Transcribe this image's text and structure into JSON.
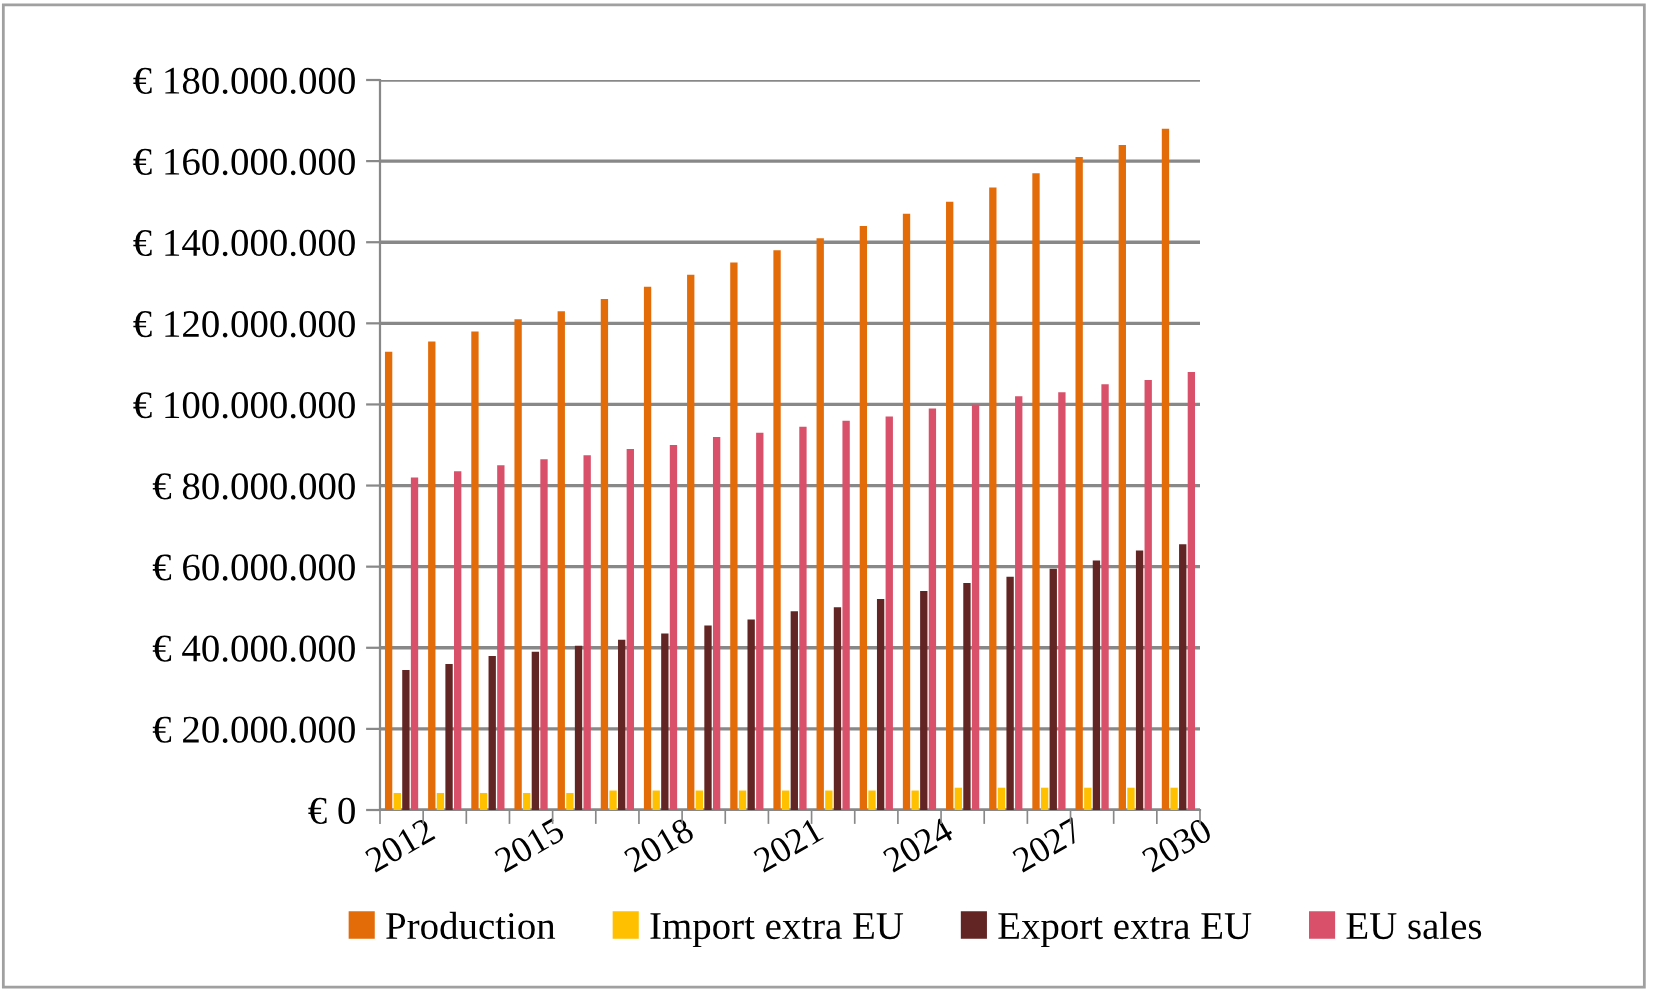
{
  "chart_data": {
    "type": "bar",
    "categories": [
      "2012",
      null,
      null,
      "2015",
      null,
      null,
      "2018",
      null,
      null,
      "2021",
      null,
      null,
      "2024",
      null,
      null,
      "2027",
      null,
      null,
      "2030"
    ],
    "series": [
      {
        "name": "Production",
        "color": "#e36c09",
        "values": [
          113000000,
          115500000,
          118000000,
          121000000,
          123000000,
          126000000,
          129000000,
          132000000,
          135000000,
          138000000,
          141000000,
          144000000,
          147000000,
          150000000,
          153500000,
          157000000,
          161000000,
          164000000,
          168000000
        ]
      },
      {
        "name": "Import extra EU",
        "color": "#ffc000",
        "values": [
          4200000,
          4200000,
          4200000,
          4200000,
          4200000,
          4800000,
          4800000,
          4800000,
          4800000,
          4800000,
          4800000,
          4800000,
          4800000,
          5500000,
          5500000,
          5500000,
          5500000,
          5500000,
          5500000
        ]
      },
      {
        "name": "Export extra EU",
        "color": "#632523",
        "values": [
          34500000,
          36000000,
          38000000,
          39000000,
          40500000,
          42000000,
          43500000,
          45500000,
          47000000,
          49000000,
          50000000,
          52000000,
          54000000,
          56000000,
          57500000,
          59500000,
          61500000,
          64000000,
          65500000
        ]
      },
      {
        "name": "EU sales",
        "color": "#d9506a",
        "values": [
          82000000,
          83500000,
          85000000,
          86500000,
          87500000,
          89000000,
          90000000,
          92000000,
          93000000,
          94500000,
          96000000,
          97000000,
          99000000,
          100000000,
          102000000,
          103000000,
          105000000,
          106000000,
          108000000
        ]
      }
    ],
    "ylim": [
      0,
      180000000
    ],
    "yticks": [
      {
        "value": 0,
        "label": "€ 0"
      },
      {
        "value": 20000000,
        "label": "€ 20.000.000"
      },
      {
        "value": 40000000,
        "label": "€ 40.000.000"
      },
      {
        "value": 60000000,
        "label": "€ 60.000.000"
      },
      {
        "value": 80000000,
        "label": "€ 80.000.000"
      },
      {
        "value": 100000000,
        "label": "€ 100.000.000"
      },
      {
        "value": 120000000,
        "label": "€ 120.000.000"
      },
      {
        "value": 140000000,
        "label": "€ 140.000.000"
      },
      {
        "value": 160000000,
        "label": "€ 160.000.000"
      },
      {
        "value": 180000000,
        "label": "€ 180.000.000"
      }
    ],
    "grid": "y",
    "legend": "bottom"
  }
}
